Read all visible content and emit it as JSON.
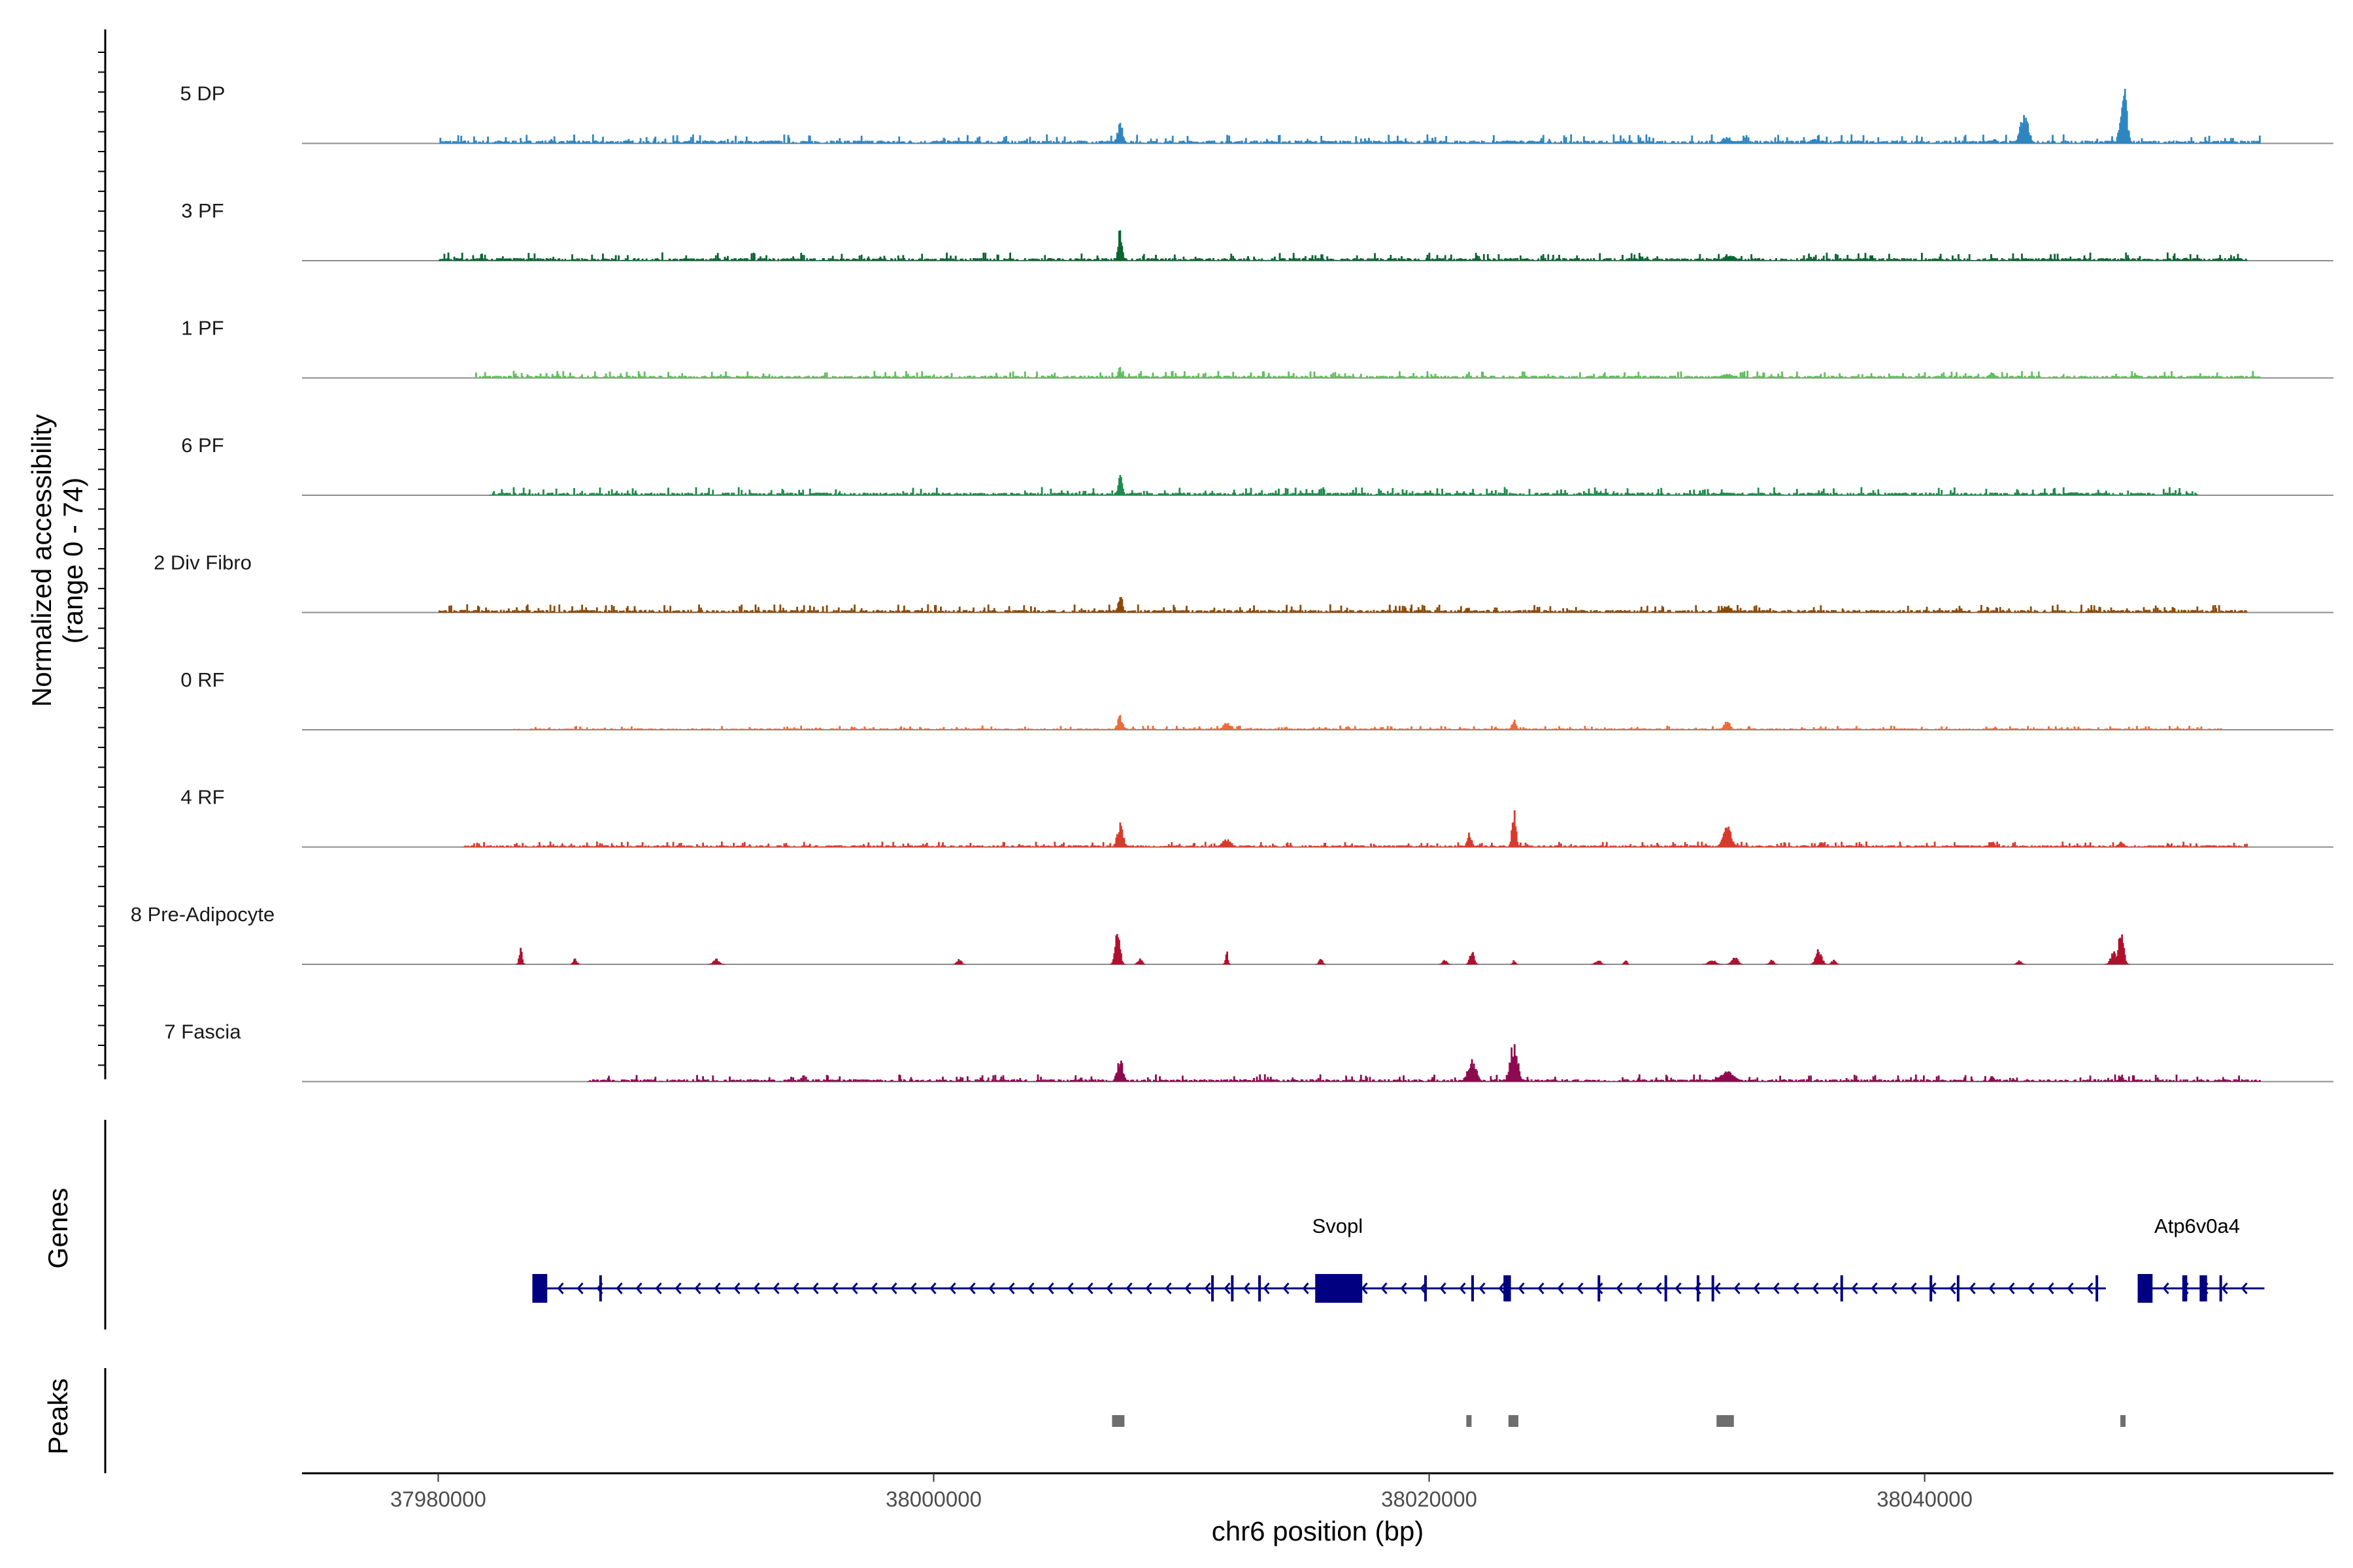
{
  "chart_data": {
    "type": "area",
    "ylabel": "Normalized accessibility",
    "ylabel_range": "(range 0 - 74)",
    "xlabel": "chr6 position (bp)",
    "xlim": [
      37974500,
      38056500
    ],
    "xticks": [
      37980000,
      38000000,
      38020000,
      38040000
    ],
    "xtick_labels": [
      "37980000",
      "38000000",
      "38020000",
      "38040000"
    ],
    "ylim": [
      0,
      74
    ],
    "grid": false,
    "series": [
      {
        "name": "5 DP",
        "color": "#2E86C1",
        "background": [
          [
            37980000,
            38053500,
            2.0
          ]
        ],
        "peaks": [
          [
            38007500,
            14,
            200
          ],
          [
            38032000,
            5,
            300
          ],
          [
            38035500,
            3,
            300
          ],
          [
            38023300,
            2,
            300
          ],
          [
            38042800,
            4,
            150
          ],
          [
            38044000,
            22,
            280
          ],
          [
            38048000,
            42,
            220
          ],
          [
            38051700,
            2,
            200
          ]
        ]
      },
      {
        "name": "3 PF",
        "color": "#0B6532",
        "background": [
          [
            37980000,
            38053000,
            1.8
          ]
        ],
        "peaks": [
          [
            38007500,
            24,
            140
          ],
          [
            38032100,
            4,
            400
          ],
          [
            38042700,
            2,
            200
          ],
          [
            38050500,
            2,
            200
          ]
        ]
      },
      {
        "name": "1 PF",
        "color": "#5FBF5F",
        "background": [
          [
            37981500,
            38053500,
            1.6
          ]
        ],
        "peaks": [
          [
            38007500,
            8,
            120
          ],
          [
            38032000,
            3,
            400
          ],
          [
            38042700,
            4,
            200
          ],
          [
            38048500,
            2,
            200
          ]
        ]
      },
      {
        "name": "6 PF",
        "color": "#1E8B4A",
        "background": [
          [
            37982000,
            38051000,
            1.8
          ]
        ],
        "peaks": [
          [
            38007500,
            14,
            150
          ],
          [
            38032000,
            2,
            500
          ],
          [
            38046000,
            2,
            600
          ]
        ]
      },
      {
        "name": "2 Div Fibro",
        "color": "#8B4A07",
        "background": [
          [
            37980000,
            38053000,
            1.8
          ]
        ],
        "peaks": [
          [
            38007500,
            14,
            150
          ],
          [
            37986000,
            2,
            200
          ],
          [
            38032000,
            5,
            300
          ],
          [
            38021500,
            3,
            150
          ]
        ]
      },
      {
        "name": "0 RF",
        "color": "#EE6A3A",
        "background": [
          [
            37983000,
            38052000,
            0.9
          ]
        ],
        "peaks": [
          [
            38007500,
            10,
            180
          ],
          [
            38011800,
            5,
            250
          ],
          [
            38023400,
            7,
            150
          ],
          [
            38032000,
            7,
            200
          ],
          [
            38042800,
            2,
            150
          ]
        ]
      },
      {
        "name": "4 RF",
        "color": "#D93A2B",
        "background": [
          [
            37981000,
            38053000,
            1.2
          ]
        ],
        "peaks": [
          [
            38007500,
            18,
            200
          ],
          [
            38011800,
            6,
            300
          ],
          [
            38021600,
            10,
            150
          ],
          [
            38023400,
            28,
            140
          ],
          [
            38032000,
            16,
            280
          ],
          [
            38035800,
            4,
            150
          ],
          [
            38042700,
            4,
            150
          ],
          [
            38047900,
            4,
            200
          ]
        ]
      },
      {
        "name": "8 Pre-Adipocyte",
        "color": "#B0102E",
        "background": [],
        "peaks": [
          [
            37983300,
            11,
            100
          ],
          [
            37985500,
            4,
            120
          ],
          [
            37991200,
            4,
            200
          ],
          [
            38001000,
            4,
            150
          ],
          [
            38007400,
            27,
            160
          ],
          [
            38008300,
            4,
            150
          ],
          [
            38011800,
            12,
            80
          ],
          [
            38015600,
            4,
            120
          ],
          [
            38020600,
            3,
            150
          ],
          [
            38021700,
            10,
            150
          ],
          [
            38023400,
            3,
            100
          ],
          [
            38026800,
            3,
            180
          ],
          [
            38027900,
            3,
            100
          ],
          [
            38031400,
            3,
            250
          ],
          [
            38032300,
            6,
            200
          ],
          [
            38033800,
            3,
            150
          ],
          [
            38035700,
            11,
            200
          ],
          [
            38036300,
            3,
            150
          ],
          [
            38043800,
            3,
            150
          ],
          [
            38047600,
            9,
            200
          ],
          [
            38047900,
            24,
            180
          ]
        ]
      },
      {
        "name": "7 Fascia",
        "color": "#8E0B4F",
        "background": [
          [
            37986000,
            38053500,
            1.6
          ]
        ],
        "peaks": [
          [
            38007500,
            17,
            200
          ],
          [
            38021700,
            16,
            300
          ],
          [
            38023400,
            30,
            250
          ],
          [
            38032000,
            7,
            500
          ],
          [
            38042700,
            4,
            150
          ],
          [
            38047900,
            4,
            150
          ]
        ]
      }
    ],
    "genes": [
      {
        "name": "Svopl",
        "start": 37983800,
        "end": 38047000,
        "strand": "-",
        "exons": [
          [
            37983800,
            37984400
          ],
          [
            37986500,
            37986600
          ],
          [
            38011200,
            38011300
          ],
          [
            38012000,
            38012100
          ],
          [
            38013100,
            38013200
          ],
          [
            38015400,
            38017300
          ],
          [
            38019800,
            38019900
          ],
          [
            38021700,
            38021800
          ],
          [
            38023000,
            38023300
          ],
          [
            38026800,
            38026900
          ],
          [
            38029500,
            38029600
          ],
          [
            38030800,
            38030900
          ],
          [
            38031400,
            38031500
          ],
          [
            38036600,
            38036700
          ],
          [
            38040200,
            38040300
          ],
          [
            38041300,
            38041400
          ],
          [
            38046900,
            38047000
          ]
        ]
      },
      {
        "name": "Atp6v0a4",
        "start": 38048600,
        "end": 38053400,
        "strand": "-",
        "exons": [
          [
            38048600,
            38049200
          ],
          [
            38050400,
            38050600
          ],
          [
            38051100,
            38051400
          ],
          [
            38051900,
            38052000
          ]
        ]
      }
    ],
    "peak_regions": [
      [
        38007200,
        38007700
      ],
      [
        38021500,
        38021700
      ],
      [
        38023200,
        38023600
      ],
      [
        38031600,
        38032300
      ],
      [
        38047900,
        38048100
      ]
    ],
    "panels": {
      "genes_label": "Genes",
      "peaks_label": "Peaks"
    }
  }
}
